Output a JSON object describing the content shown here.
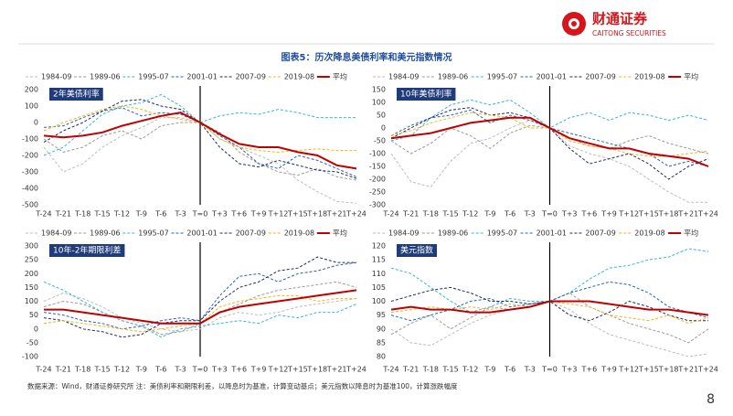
{
  "header": {
    "brand": "财通证券",
    "brand_en": "CAITONG SECURITIES",
    "title": "图表5：历次降息美债利率和美元指数情况"
  },
  "chart_data": [
    {
      "type": "line",
      "title": "2年美债利率",
      "categories": [
        "T-24",
        "T-21",
        "T-18",
        "T-15",
        "T-12",
        "T-9",
        "T-6",
        "T-3",
        "T=0",
        "T+3",
        "T+6",
        "T+9",
        "T+12",
        "T+15",
        "T+18",
        "T+21",
        "T+24"
      ],
      "ylim": [
        -500,
        200
      ],
      "yticks": [
        -500,
        -400,
        -300,
        -200,
        -100,
        0,
        100,
        200
      ],
      "series": [
        {
          "name": "1984-09",
          "color": "#bdbdbd",
          "dashed": true,
          "values": [
            -150,
            -300,
            -250,
            -150,
            -80,
            -30,
            30,
            30,
            0,
            -100,
            -150,
            -200,
            -250,
            -350,
            -420,
            -480,
            -490
          ]
        },
        {
          "name": "1989-06",
          "color": "#9a9a9a",
          "dashed": true,
          "values": [
            -100,
            -180,
            -150,
            -80,
            -50,
            -100,
            -20,
            0,
            0,
            -60,
            -180,
            -250,
            -300,
            -320,
            -280,
            -330,
            -350
          ]
        },
        {
          "name": "1995-07",
          "color": "#35b4e6",
          "dashed": true,
          "values": [
            -200,
            -150,
            -50,
            50,
            100,
            120,
            170,
            100,
            0,
            40,
            60,
            50,
            80,
            60,
            30,
            30,
            30
          ]
        },
        {
          "name": "2001-01",
          "color": "#2a62b0",
          "dashed": true,
          "values": [
            -30,
            -20,
            30,
            70,
            90,
            40,
            60,
            50,
            0,
            -80,
            -150,
            -250,
            -280,
            -200,
            -230,
            -280,
            -330
          ]
        },
        {
          "name": "2007-09",
          "color": "#1c2b5c",
          "dashed": true,
          "values": [
            -120,
            -50,
            0,
            70,
            130,
            140,
            100,
            80,
            0,
            -150,
            -250,
            -270,
            -230,
            -260,
            -290,
            -300,
            -340
          ]
        },
        {
          "name": "2019-08",
          "color": "#f2b31b",
          "dashed": true,
          "values": [
            -50,
            0,
            40,
            80,
            100,
            80,
            40,
            20,
            0,
            -100,
            -150,
            -170,
            -180,
            -170,
            -160,
            -170,
            -170
          ]
        },
        {
          "name": "平均",
          "color": "#c00000",
          "dashed": false,
          "values": [
            -80,
            -90,
            -80,
            -60,
            -20,
            10,
            40,
            60,
            0,
            -70,
            -130,
            -150,
            -150,
            -180,
            -200,
            -260,
            -280
          ]
        }
      ]
    },
    {
      "type": "line",
      "title": "10年美债利率",
      "categories": [
        "T-24",
        "T-21",
        "T-18",
        "T-15",
        "T-12",
        "T-9",
        "T-6",
        "T-3",
        "T=0",
        "T+3",
        "T+6",
        "T+9",
        "T+12",
        "T+15",
        "T+18",
        "T+21",
        "T+24"
      ],
      "ylim": [
        -300,
        150
      ],
      "yticks": [
        -300,
        -250,
        -200,
        -150,
        -100,
        -50,
        0,
        50,
        100,
        150
      ],
      "series": [
        {
          "name": "1984-09",
          "color": "#bdbdbd",
          "dashed": true,
          "values": [
            -100,
            -210,
            -230,
            -130,
            -60,
            -40,
            0,
            30,
            0,
            -70,
            -100,
            -120,
            -150,
            -200,
            -250,
            -290,
            -290
          ]
        },
        {
          "name": "1989-06",
          "color": "#9a9a9a",
          "dashed": true,
          "values": [
            -50,
            -100,
            -60,
            0,
            -30,
            -80,
            -20,
            10,
            0,
            -40,
            -70,
            -80,
            -50,
            -30,
            -60,
            -80,
            -100
          ]
        },
        {
          "name": "1995-07",
          "color": "#35b4e6",
          "dashed": true,
          "values": [
            -50,
            -30,
            40,
            90,
            110,
            90,
            110,
            60,
            0,
            40,
            60,
            30,
            60,
            50,
            30,
            50,
            30
          ]
        },
        {
          "name": "2001-01",
          "color": "#2a62b0",
          "dashed": true,
          "values": [
            -30,
            10,
            40,
            50,
            70,
            20,
            50,
            30,
            0,
            -20,
            -40,
            -60,
            -80,
            -100,
            -150,
            -130,
            -150
          ]
        },
        {
          "name": "2007-09",
          "color": "#1c2b5c",
          "dashed": true,
          "values": [
            -40,
            0,
            40,
            70,
            80,
            50,
            60,
            40,
            0,
            -80,
            -140,
            -120,
            -100,
            -140,
            -200,
            -150,
            -120
          ]
        },
        {
          "name": "2019-08",
          "color": "#f2b31b",
          "dashed": true,
          "values": [
            -30,
            -10,
            20,
            40,
            60,
            50,
            40,
            0,
            0,
            -50,
            -70,
            -80,
            -100,
            -110,
            -110,
            -100,
            -90
          ]
        },
        {
          "name": "平均",
          "color": "#c00000",
          "dashed": false,
          "values": [
            -40,
            -30,
            -20,
            0,
            20,
            30,
            40,
            40,
            0,
            -40,
            -60,
            -80,
            -80,
            -100,
            -110,
            -120,
            -150
          ]
        }
      ]
    },
    {
      "type": "line",
      "title": "10年-2年期限利差",
      "categories": [
        "T-24",
        "T-21",
        "T-18",
        "T-15",
        "T-12",
        "T-9",
        "T-6",
        "T-3",
        "T=0",
        "T+3",
        "T+6",
        "T+9",
        "T+12",
        "T+15",
        "T+18",
        "T+21",
        "T+24"
      ],
      "ylim": [
        -100,
        300
      ],
      "yticks": [
        -100,
        -50,
        0,
        50,
        100,
        150,
        200,
        250,
        300
      ],
      "series": [
        {
          "name": "1984-09",
          "color": "#bdbdbd",
          "dashed": true,
          "values": [
            100,
            130,
            110,
            80,
            40,
            20,
            0,
            -10,
            0,
            40,
            60,
            50,
            60,
            80,
            90,
            100,
            110
          ]
        },
        {
          "name": "1989-06",
          "color": "#9a9a9a",
          "dashed": true,
          "values": [
            80,
            100,
            90,
            60,
            30,
            10,
            -20,
            -10,
            20,
            60,
            90,
            120,
            140,
            150,
            160,
            170,
            150
          ]
        },
        {
          "name": "1995-07",
          "color": "#35b4e6",
          "dashed": true,
          "values": [
            170,
            140,
            100,
            60,
            30,
            10,
            -30,
            0,
            10,
            20,
            30,
            20,
            50,
            40,
            60,
            60,
            90
          ]
        },
        {
          "name": "2001-01",
          "color": "#2a62b0",
          "dashed": true,
          "values": [
            60,
            50,
            30,
            20,
            0,
            10,
            30,
            40,
            30,
            120,
            190,
            200,
            170,
            200,
            210,
            230,
            240
          ]
        },
        {
          "name": "2007-09",
          "color": "#1c2b5c",
          "dashed": true,
          "values": [
            40,
            30,
            0,
            -10,
            -30,
            -20,
            20,
            30,
            30,
            100,
            150,
            170,
            210,
            220,
            260,
            240,
            240
          ]
        },
        {
          "name": "2019-08",
          "color": "#f2b31b",
          "dashed": true,
          "values": [
            20,
            30,
            20,
            10,
            0,
            -10,
            0,
            10,
            20,
            80,
            100,
            110,
            120,
            120,
            100,
            110,
            110
          ]
        },
        {
          "name": "平均",
          "color": "#c00000",
          "dashed": false,
          "values": [
            70,
            70,
            60,
            50,
            40,
            30,
            20,
            20,
            20,
            60,
            80,
            90,
            100,
            110,
            120,
            130,
            140
          ]
        }
      ]
    },
    {
      "type": "line",
      "title": "美元指数",
      "categories": [
        "T-24",
        "T-21",
        "T-18",
        "T-15",
        "T-12",
        "T-9",
        "T-6",
        "T-3",
        "T=0",
        "T+3",
        "T+6",
        "T+9",
        "T+12",
        "T+15",
        "T+18",
        "T+21",
        "T+24"
      ],
      "ylim": [
        80,
        120
      ],
      "yticks": [
        80,
        85,
        90,
        95,
        100,
        105,
        110,
        115,
        120
      ],
      "series": [
        {
          "name": "1984-09",
          "color": "#bdbdbd",
          "dashed": true,
          "values": [
            90,
            85,
            84,
            88,
            92,
            95,
            97,
            98,
            100,
            97,
            92,
            88,
            86,
            84,
            82,
            80,
            81
          ]
        },
        {
          "name": "1989-06",
          "color": "#9a9a9a",
          "dashed": true,
          "values": [
            88,
            92,
            95,
            90,
            94,
            98,
            97,
            98,
            100,
            103,
            98,
            95,
            92,
            90,
            88,
            85,
            90
          ]
        },
        {
          "name": "1995-07",
          "color": "#35b4e6",
          "dashed": true,
          "values": [
            112,
            110,
            105,
            100,
            96,
            98,
            101,
            100,
            100,
            103,
            108,
            112,
            113,
            115,
            116,
            119,
            118
          ]
        },
        {
          "name": "2001-01",
          "color": "#2a62b0",
          "dashed": true,
          "values": [
            95,
            93,
            95,
            97,
            100,
            101,
            98,
            99,
            100,
            103,
            105,
            107,
            106,
            103,
            98,
            96,
            94
          ]
        },
        {
          "name": "2007-09",
          "color": "#1c2b5c",
          "dashed": true,
          "values": [
            100,
            102,
            104,
            105,
            103,
            100,
            100,
            99,
            100,
            95,
            93,
            96,
            100,
            98,
            95,
            93,
            93
          ]
        },
        {
          "name": "2019-08",
          "color": "#f2b31b",
          "dashed": true,
          "values": [
            96,
            97,
            98,
            97,
            98,
            97,
            99,
            98,
            100,
            99,
            98,
            95,
            94,
            93,
            95,
            92,
            94
          ]
        },
        {
          "name": "平均",
          "color": "#c00000",
          "dashed": false,
          "values": [
            97,
            98,
            97,
            97,
            96,
            96,
            97,
            98,
            100,
            100,
            100,
            99,
            98,
            97,
            97,
            96,
            95
          ]
        }
      ]
    }
  ],
  "footer": {
    "note": "数据来源：Wind，财通证券研究所    注：美债利率和期限利差，以降息时为基准，计算变动基点；美元指数以降息时为基准100，计算涨跌幅度",
    "page": "8"
  }
}
